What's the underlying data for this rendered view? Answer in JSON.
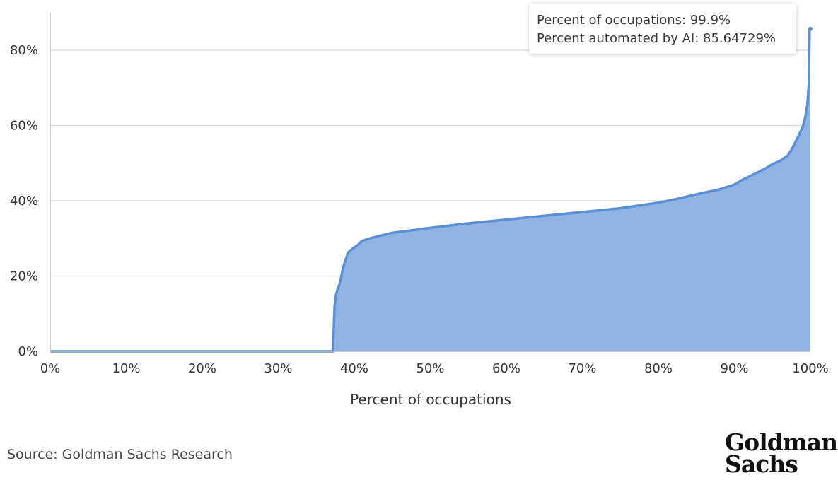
{
  "chart_data": {
    "type": "area",
    "xlabel": "Percent of occupations",
    "ylabel": "",
    "xlim": [
      0,
      100
    ],
    "ylim": [
      0,
      90
    ],
    "x_ticks": [
      "0%",
      "10%",
      "20%",
      "30%",
      "40%",
      "50%",
      "60%",
      "70%",
      "80%",
      "90%",
      "100%"
    ],
    "y_ticks": [
      "0%",
      "20%",
      "40%",
      "60%",
      "80%"
    ],
    "grid": "horizontal",
    "colors": {
      "line": "#5b8fd4",
      "fill": "#8fb3e3",
      "grid": "#dddddd",
      "axis": "#bbbbbb"
    },
    "series": [
      {
        "x": [
          0,
          37.2,
          37.3,
          37.4,
          37.6,
          37.8,
          38.0,
          38.2,
          38.5,
          38.8,
          39.2,
          39.6,
          40.0,
          40.5,
          41.0,
          42.0,
          43.0,
          44.0,
          45.0,
          47.0,
          50.0,
          55.0,
          60.0,
          65.0,
          70.0,
          75.0,
          80.0,
          82.0,
          85.0,
          88.0,
          90.0,
          91.0,
          92.0,
          93.0,
          94.0,
          95.0,
          96.0,
          97.0,
          97.5,
          98.0,
          98.5,
          99.0,
          99.3,
          99.6,
          99.8,
          99.9
        ],
        "y": [
          0,
          0,
          6,
          12,
          15,
          16.5,
          17.5,
          19,
          22,
          24,
          26.3,
          27,
          27.6,
          28.3,
          29.3,
          30,
          30.5,
          31,
          31.5,
          32,
          32.8,
          34,
          35,
          36,
          37,
          38,
          39.5,
          40.3,
          41.7,
          43,
          44.3,
          45.5,
          46.5,
          47.5,
          48.5,
          49.7,
          50.6,
          52,
          53.5,
          55.5,
          57.5,
          59.7,
          62,
          65.5,
          71,
          85.64729
        ]
      }
    ]
  },
  "tooltip": {
    "line1": "Percent of occupations: 99.9%",
    "line2": "Percent automated by AI: 85.64729%"
  },
  "source": "Source: Goldman Sachs Research",
  "logo": {
    "line1": "Goldman",
    "line2": "Sachs"
  }
}
